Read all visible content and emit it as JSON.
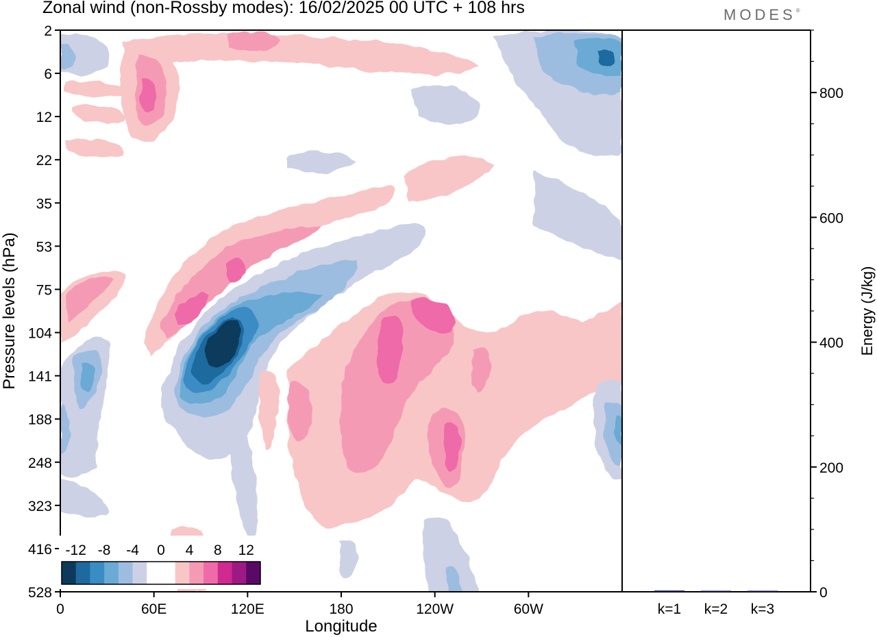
{
  "title": "Zonal wind (non-Rossby modes):  16/02/2025  00 UTC  + 108 hrs",
  "logo": "MODES",
  "logo_mark": "®",
  "chart_data": [
    {
      "type": "heatmap",
      "xlabel": "Longitude",
      "ylabel": "Pressure levels (hPa)",
      "x_ticks": [
        "0",
        "60E",
        "120E",
        "180",
        "120W",
        "60W"
      ],
      "y_ticks": [
        "2",
        "6",
        "12",
        "22",
        "35",
        "53",
        "75",
        "104",
        "141",
        "188",
        "248",
        "323",
        "416",
        "528"
      ],
      "y_order": "top-to-bottom",
      "colorbar": {
        "tick_labels": [
          "-12",
          "-8",
          "-4",
          "0",
          "4",
          "8",
          "12"
        ],
        "colors": [
          "#0d3a5c",
          "#1e6a9e",
          "#3a8cc4",
          "#6aaad4",
          "#9dbde0",
          "#cdd1e6",
          "#ffffff",
          "#ffffff",
          "#f8c6c6",
          "#f59ab5",
          "#ef6aa8",
          "#cf2a8f",
          "#9d1a82",
          "#5a0a66"
        ],
        "placement": "bottom-left"
      },
      "features": [
        {
          "lon": 100,
          "level": "104-141",
          "value": -12
        },
        {
          "lon": 130,
          "level": "75-104",
          "value": -8
        },
        {
          "lon": 95,
          "level": "53-75",
          "value": 8
        },
        {
          "lon": 70,
          "level": "75-104",
          "value": 8
        },
        {
          "lon": 200,
          "level": "104-141",
          "value": 8
        },
        {
          "lon": 215,
          "level": "75-104",
          "value": 8
        },
        {
          "lon": 238,
          "level": "188-248",
          "value": 10
        },
        {
          "lon": 15,
          "level": "104-188",
          "value": -8
        },
        {
          "lon": 355,
          "level": "2-12",
          "value": -8
        },
        {
          "lon": 50,
          "level": "6-12",
          "value": 8
        },
        {
          "lon": 355,
          "level": "141-248",
          "value": -6
        }
      ]
    },
    {
      "type": "bar",
      "ylabel": "Energy (J/kg)",
      "categories": [
        "k=1",
        "k=2",
        "k=3"
      ],
      "values": [
        2,
        1,
        1
      ],
      "ylim": [
        0,
        900
      ],
      "y_ticks": [
        "0",
        "200",
        "400",
        "600",
        "800"
      ],
      "color": "#1a1a5e"
    }
  ]
}
